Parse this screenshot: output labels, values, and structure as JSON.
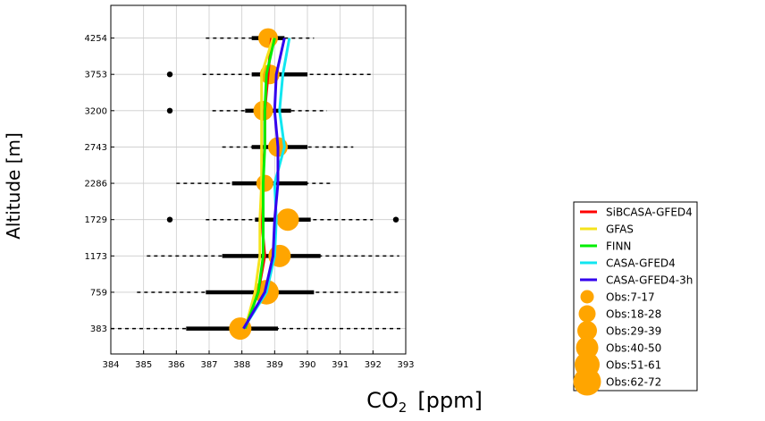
{
  "chart_data": {
    "type": "line",
    "xlabel": "CO2 [ppm]",
    "xlabel_main": "CO",
    "xlabel_sub": "2",
    "xlabel_unit": "[ppm]",
    "ylabel": "Altitude [m]",
    "xlim": [
      384,
      393
    ],
    "x_ticks": [
      384,
      385,
      386,
      387,
      388,
      389,
      390,
      391,
      392,
      393
    ],
    "altitude_levels": [
      383,
      759,
      1173,
      1729,
      2286,
      2743,
      3200,
      3753,
      4254
    ],
    "level_index_range": [
      -0.7,
      8.9
    ],
    "grid": true,
    "legend_position": "lower-right-outside",
    "series": [
      {
        "name": "SiBCASA-GFED4",
        "color": "#ff0000",
        "values": [
          388.1,
          388.5,
          388.7,
          388.6,
          388.6,
          388.7,
          388.7,
          388.8,
          388.9
        ]
      },
      {
        "name": "GFAS",
        "color": "#f5e31c",
        "values": [
          388.1,
          388.4,
          388.55,
          388.55,
          388.6,
          388.6,
          388.6,
          388.6,
          388.95
        ]
      },
      {
        "name": "FINN",
        "color": "#00ee00",
        "values": [
          388.1,
          388.5,
          388.65,
          388.65,
          388.65,
          388.7,
          388.7,
          388.75,
          389.0
        ]
      },
      {
        "name": "CASA-GFED4",
        "color": "#11e6f0",
        "values": [
          388.05,
          388.75,
          389.0,
          389.05,
          389.0,
          389.3,
          389.15,
          389.25,
          389.45
        ]
      },
      {
        "name": "CASA-GFED4-3h",
        "color": "#3300ee",
        "values": [
          388.05,
          388.7,
          388.95,
          389.0,
          389.1,
          389.1,
          389.0,
          389.05,
          389.3
        ]
      }
    ],
    "observations": {
      "color": "#ffa500",
      "mean": [
        387.95,
        388.75,
        389.15,
        389.4,
        388.7,
        389.1,
        388.65,
        388.85,
        388.8
      ],
      "size_class": [
        3,
        4,
        3,
        3,
        1,
        2,
        2,
        2,
        2
      ],
      "range": [
        [
          383.9,
          392.9
        ],
        [
          384.8,
          392.8
        ],
        [
          385.1,
          392.8
        ],
        [
          386.9,
          392.0
        ],
        [
          386.0,
          390.7
        ],
        [
          387.4,
          391.4
        ],
        [
          387.1,
          390.6
        ],
        [
          386.8,
          392.0
        ],
        [
          386.9,
          390.2
        ]
      ],
      "iqr": [
        [
          386.3,
          389.1
        ],
        [
          386.9,
          390.2
        ],
        [
          387.4,
          390.4
        ],
        [
          388.4,
          390.1
        ],
        [
          387.7,
          390.0
        ],
        [
          388.3,
          390.0
        ],
        [
          388.1,
          389.5
        ],
        [
          388.3,
          390.0
        ],
        [
          388.3,
          389.3
        ]
      ],
      "outliers": [
        [],
        [],
        [],
        [
          385.8,
          392.7
        ],
        [],
        [],
        [
          385.8
        ],
        [
          385.8
        ],
        []
      ]
    },
    "legend": {
      "lines": [
        "SiBCASA-GFED4",
        "GFAS",
        "FINN",
        "CASA-GFED4",
        "CASA-GFED4-3h"
      ],
      "obs_bins": [
        "Obs:7-17",
        "Obs:18-28",
        "Obs:29-39",
        "Obs:40-50",
        "Obs:51-61",
        "Obs:62-72"
      ]
    }
  }
}
